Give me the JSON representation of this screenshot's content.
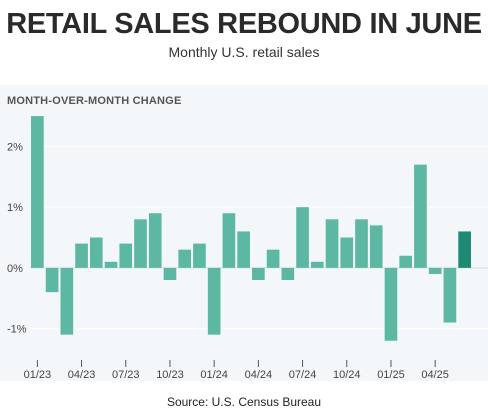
{
  "header": {
    "title": "RETAIL SALES REBOUND IN JUNE",
    "subtitle": "Monthly U.S. retail sales"
  },
  "footer": {
    "source": "Source: U.S. Census Bureau"
  },
  "colors": {
    "bar": "#5cb8a3",
    "highlight": "#1e8a73",
    "panel": "#f4f7fa",
    "grid": "#ffffff"
  },
  "chart_data": {
    "type": "bar",
    "title": "RETAIL SALES REBOUND IN JUNE",
    "subtitle": "Monthly U.S. retail sales",
    "ylabel": "MONTH-OVER-MONTH CHANGE",
    "xlabel": "",
    "categories": [
      "01/23",
      "02/23",
      "03/23",
      "04/23",
      "05/23",
      "06/23",
      "07/23",
      "08/23",
      "09/23",
      "10/23",
      "11/23",
      "12/23",
      "01/24",
      "02/24",
      "03/24",
      "04/24",
      "05/24",
      "06/24",
      "07/24",
      "08/24",
      "09/24",
      "10/24",
      "11/24",
      "12/24",
      "01/25",
      "02/25",
      "03/25",
      "04/25",
      "05/25",
      "06/25"
    ],
    "values": [
      2.5,
      -0.4,
      -1.1,
      0.4,
      0.5,
      0.1,
      0.4,
      0.8,
      0.9,
      -0.2,
      0.3,
      0.4,
      -1.1,
      0.9,
      0.6,
      -0.2,
      0.3,
      -0.2,
      1.0,
      0.1,
      0.8,
      0.5,
      0.8,
      0.7,
      -1.2,
      0.2,
      1.7,
      -0.1,
      -0.9,
      0.6
    ],
    "highlight_index": 29,
    "xtick_labels": [
      "01/23",
      "04/23",
      "07/23",
      "10/23",
      "01/24",
      "04/24",
      "07/24",
      "10/24",
      "01/25",
      "04/25"
    ],
    "xtick_every": 3,
    "yticks": [
      2,
      1,
      0,
      -1
    ],
    "ytick_labels": [
      "2%",
      "1%",
      "0%",
      "-1%"
    ],
    "ylim": [
      -1.55,
      2.6
    ],
    "grid": true,
    "legend": "none"
  }
}
